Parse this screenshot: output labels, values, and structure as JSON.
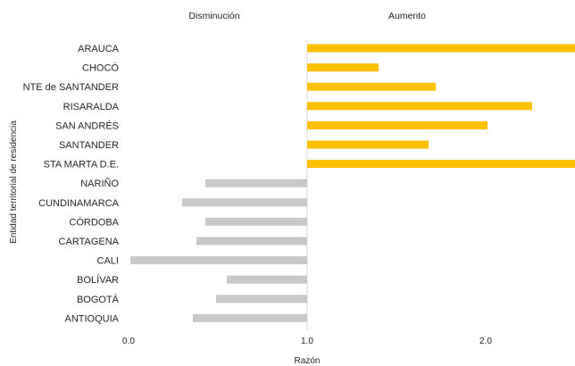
{
  "chart_data": {
    "type": "bar",
    "orientation": "horizontal",
    "categories": [
      "ARAUCA",
      "CHOCÓ",
      "NTE de SANTANDER",
      "RISARALDA",
      "SAN ANDRÉS",
      "SANTANDER",
      "STA MARTA D.E.",
      "NARIÑO",
      "CUNDINAMARCA",
      "CÓRDOBA",
      "CARTAGENA",
      "CALI",
      "BOLÍVAR",
      "BOGOTÁ",
      "ANTIOQUIA"
    ],
    "values": [
      2.55,
      1.4,
      1.72,
      2.26,
      2.01,
      1.68,
      2.55,
      0.43,
      0.3,
      0.43,
      0.38,
      0.01,
      0.55,
      0.49,
      0.36
    ],
    "baseline": 1.0,
    "xlabel": "Razón",
    "ylabel": "Entidad territorial de residencia",
    "xticks": [
      0.0,
      1.0,
      2.0
    ],
    "xtick_labels": [
      "0.0",
      "1.0",
      "2.0"
    ],
    "xlim": [
      0.0,
      2.5
    ],
    "headers": {
      "left": "Disminución",
      "right": "Aumento"
    },
    "colors": {
      "increase": "#FFC000",
      "decrease": "#C8C8C8",
      "reference_line": "#D9D9D9"
    },
    "grid": false,
    "legend": "none"
  }
}
